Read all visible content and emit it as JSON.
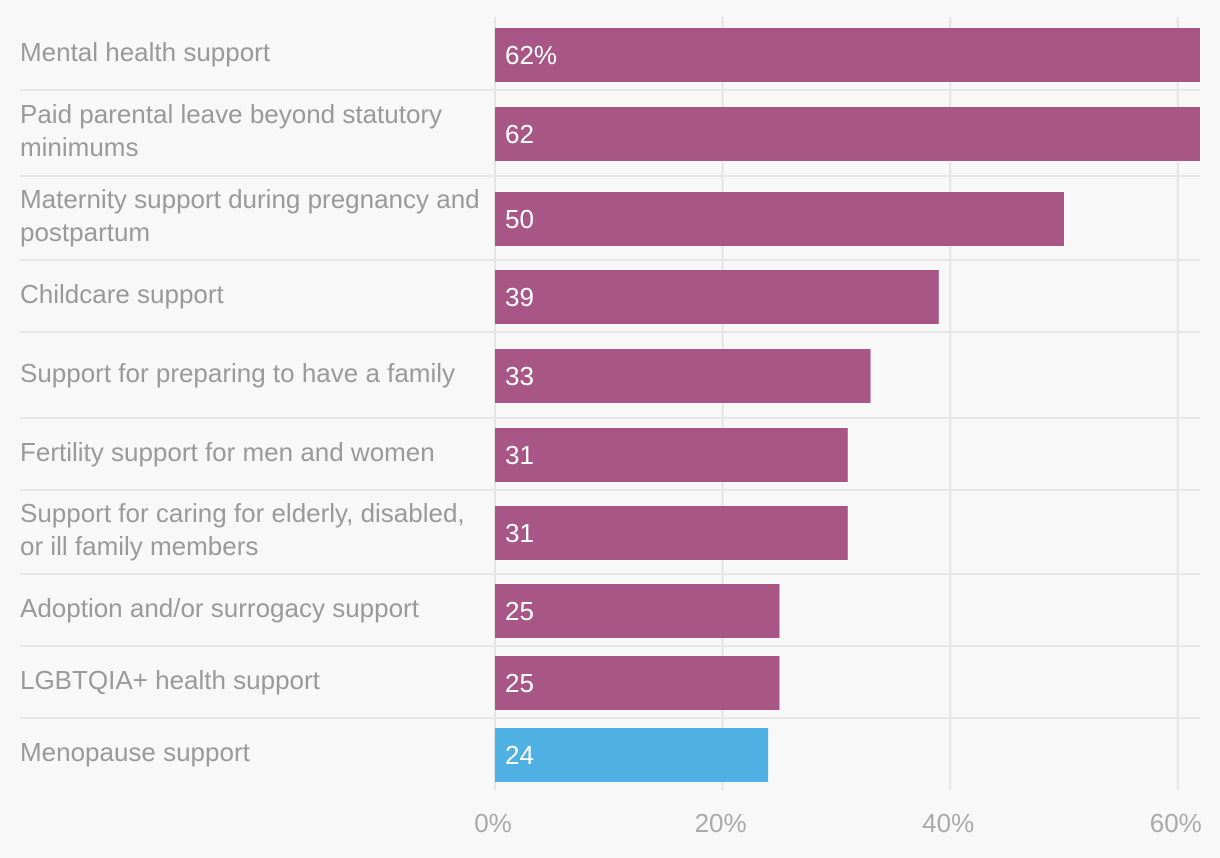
{
  "chart_data": {
    "type": "bar",
    "orientation": "horizontal",
    "title": "",
    "xlabel": "",
    "ylabel": "",
    "xlim": [
      0,
      62
    ],
    "x_ticks": [
      0,
      20,
      40,
      60
    ],
    "x_tick_labels": [
      "0%",
      "20%",
      "40%",
      "60%"
    ],
    "grid": true,
    "categories": [
      "Mental health support",
      "Paid parental leave beyond statutory minimums",
      "Maternity support during pregnancy and postpartum",
      "Childcare support",
      "Support for preparing to have a family",
      "Fertility support for men and women",
      "Support for caring for elderly, disabled, or ill family members",
      "Adoption and/or surrogacy support",
      "LGBTQIA+ health support",
      "Menopause support"
    ],
    "values": [
      62,
      62,
      50,
      39,
      33,
      31,
      31,
      25,
      25,
      24
    ],
    "value_labels": [
      "62%",
      "62",
      "50",
      "39",
      "33",
      "31",
      "31",
      "25",
      "25",
      "24"
    ],
    "highlight_index": 9,
    "colors": {
      "default": "#a85686",
      "highlight": "#4fb0e3",
      "grid": "#e4e4e4",
      "separator": "#e6e6e6"
    }
  }
}
